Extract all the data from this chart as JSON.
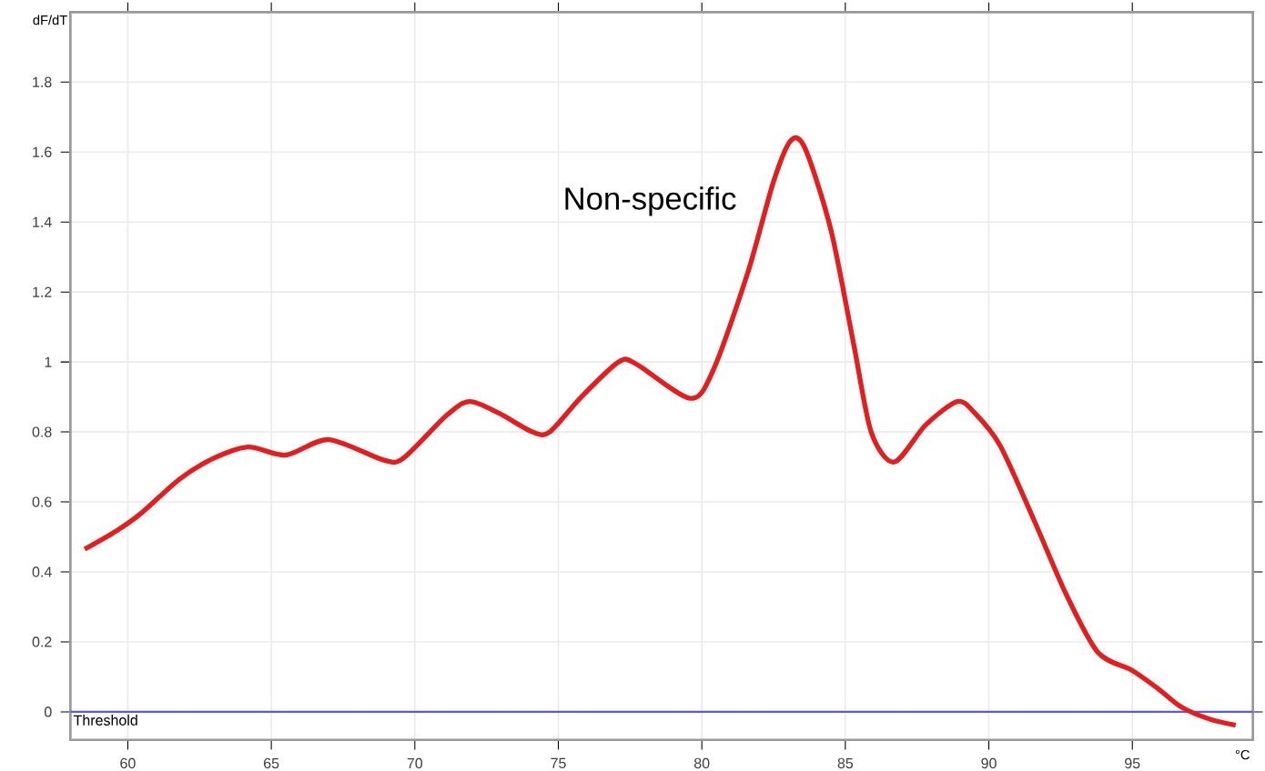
{
  "chart_data": {
    "type": "line",
    "xlabel": "°C",
    "ylabel": "dF/dT",
    "annotations": [
      "Non-specific"
    ],
    "xlim": [
      58,
      99.2
    ],
    "ylim": [
      -0.08,
      2.0
    ],
    "xticks": [
      60,
      65,
      70,
      75,
      80,
      85,
      90,
      95
    ],
    "yticks": [
      0,
      0.2,
      0.4,
      0.6,
      0.8,
      1,
      1.2,
      1.4,
      1.6,
      1.8
    ],
    "grid": true,
    "marker": "none",
    "line_style": "solid",
    "ref_lines": [
      {
        "axis": "y",
        "value": 0,
        "label": "Threshold",
        "color": "#5a5ae6"
      }
    ],
    "series": [
      {
        "color": "#e41e1e",
        "x": [
          58.5,
          59.6,
          60.5,
          61.8,
          63.0,
          64.2,
          65.5,
          67.0,
          68.9,
          69.6,
          71.1,
          71.9,
          72.9,
          74.1,
          74.7,
          75.8,
          77.1,
          77.7,
          79.6,
          80.4,
          81.6,
          82.5,
          83.1,
          83.6,
          84.5,
          85.3,
          85.9,
          86.7,
          87.8,
          88.9,
          89.5,
          90.4,
          91.6,
          92.7,
          93.8,
          95.0,
          95.9,
          96.7,
          97.7,
          98.6
        ],
        "values": [
          0.465,
          0.517,
          0.57,
          0.665,
          0.725,
          0.757,
          0.734,
          0.778,
          0.72,
          0.725,
          0.847,
          0.887,
          0.855,
          0.8,
          0.8,
          0.9,
          1.0,
          0.995,
          0.896,
          0.977,
          1.255,
          1.516,
          1.633,
          1.61,
          1.377,
          1.047,
          0.8,
          0.714,
          0.82,
          0.887,
          0.855,
          0.76,
          0.543,
          0.335,
          0.17,
          0.118,
          0.066,
          0.014,
          -0.021,
          -0.038
        ]
      }
    ]
  }
}
